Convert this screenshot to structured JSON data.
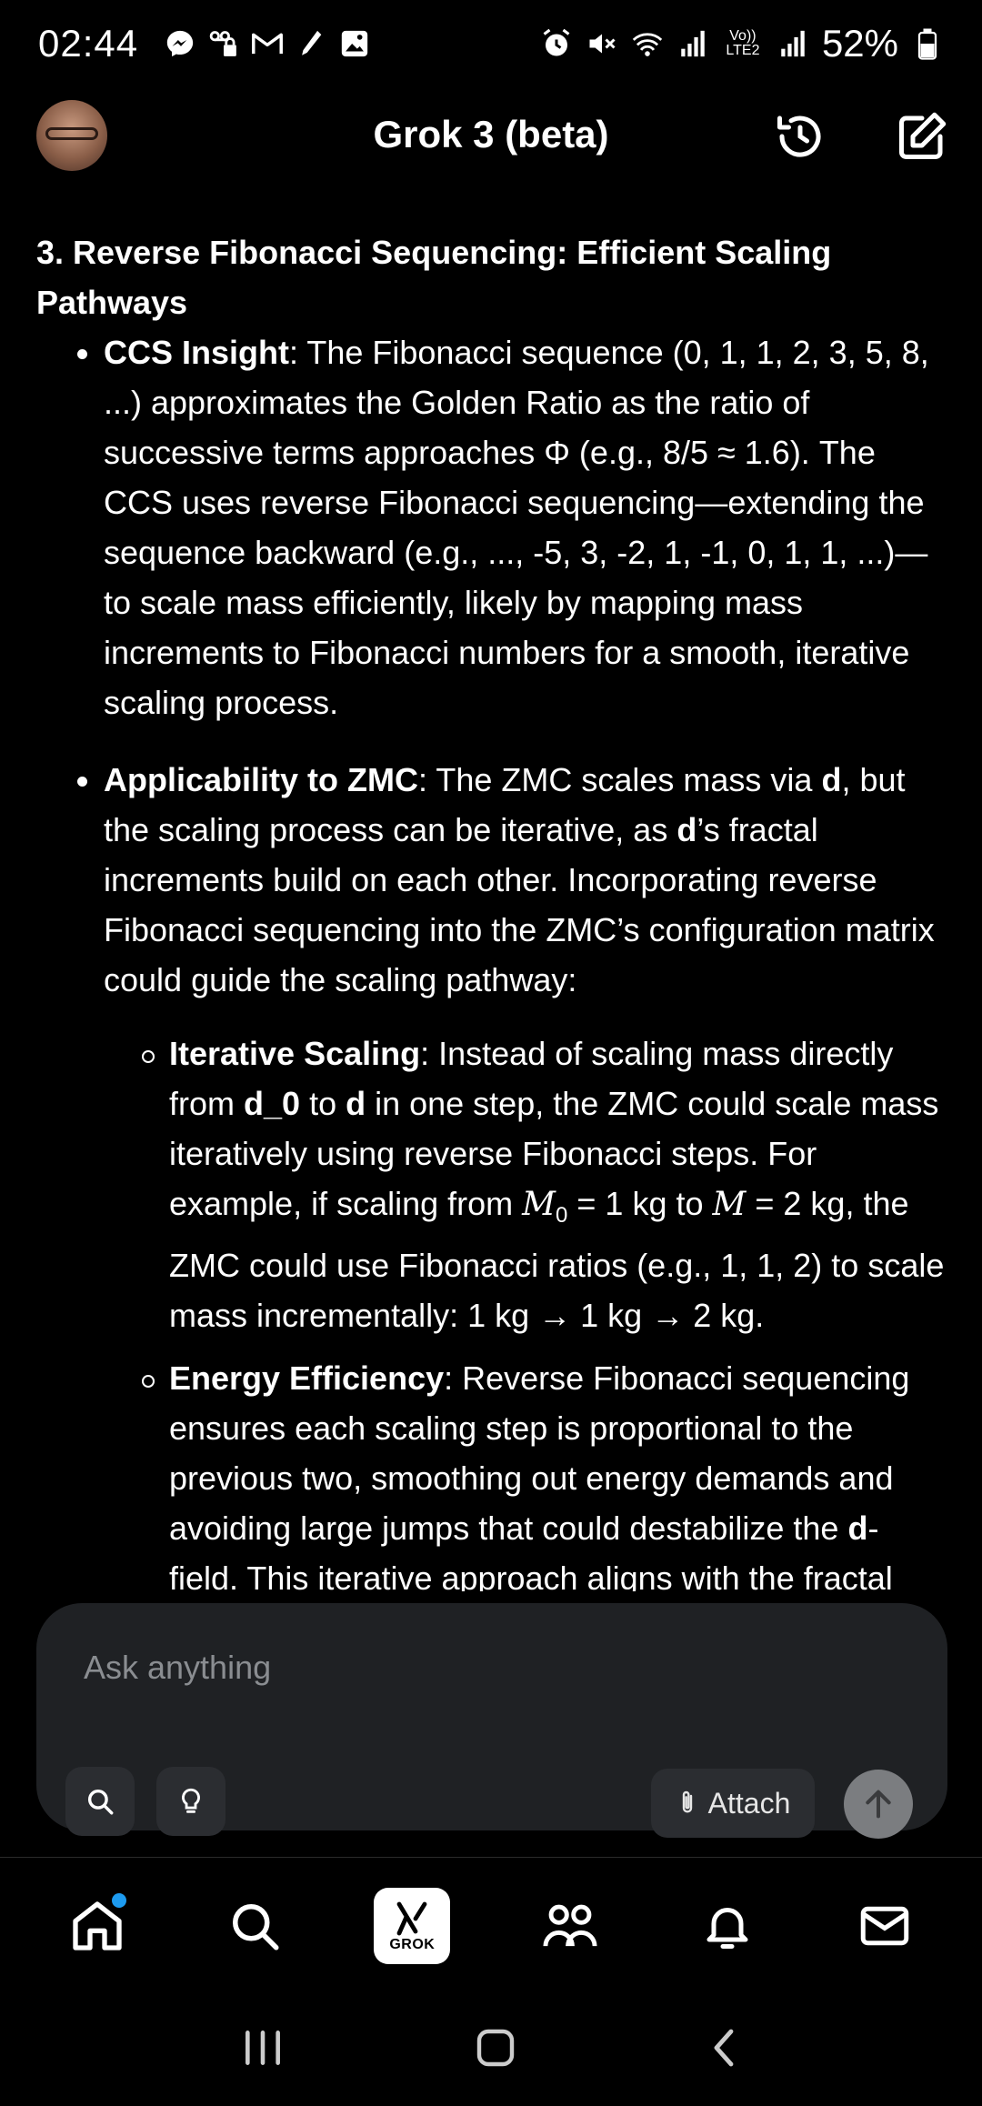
{
  "status_bar": {
    "time": "02:44",
    "battery": "52%",
    "network_label": "Vo)) LTE2",
    "left_icons": [
      "messenger-icon",
      "voicemail-lock-icon",
      "gmail-icon",
      "pen-icon",
      "gallery-icon"
    ],
    "right_icons": [
      "alarm-icon",
      "mute-icon",
      "wifi-icon",
      "signal-icon",
      "battery-icon"
    ]
  },
  "header": {
    "title": "Grok 3 (beta)"
  },
  "content": {
    "section_title": "3. Reverse Fibonacci Sequencing: Efficient Scaling Pathways",
    "bullet1": {
      "label": "CCS Insight",
      "text": ": The Fibonacci sequence (0, 1, 1, 2, 3, 5, 8, ...) approximates the Golden Ratio as the ratio of successive terms approaches Φ (e.g., 8/5 ≈ 1.6). The CCS uses reverse Fibonacci sequencing—extending the sequence backward (e.g., ..., -5, 3, -2, 1, -1, 0, 1, 1, ...)—to scale mass efficiently, likely by mapping mass increments to Fibonacci numbers for a smooth, iterative scaling process."
    },
    "bullet2": {
      "label": "Applicability to ZMC",
      "t1": ": The ZMC scales mass via ",
      "d1": "d",
      "t2": ", but the scaling process can be iterative, as ",
      "d2": "d",
      "t3": "’s fractal increments build on each other. Incorporating reverse Fibonacci sequencing into the ZMC’s configuration matrix could guide the scaling pathway:"
    },
    "sub1": {
      "label": "Iterative Scaling",
      "t1": ": Instead of scaling mass directly from ",
      "d0": "d_0",
      "t2": " to ",
      "d": "d",
      "t3": " in one step, the ZMC could scale mass iteratively using reverse Fibonacci steps. For example, if scaling from ",
      "m0": "M",
      "m0_sub": "0",
      "t4": " = 1 kg to ",
      "m": "M",
      "t5": " = 2 kg, the ZMC could use Fibonacci ratios (e.g., 1, 1, 2) to scale mass incrementally: 1 kg → 1 kg → 2 kg."
    },
    "sub2": {
      "label": "Energy Efficiency",
      "t1": ": Reverse Fibonacci sequencing ensures each scaling step is proportional to the previous two, smoothing out energy demands and avoiding large jumps that could destabilize the ",
      "d": "d",
      "t2": "-field. This iterative approach aligns with the fractal"
    }
  },
  "composer": {
    "placeholder": "Ask anything",
    "attach_label": "Attach"
  },
  "bottom_nav": {
    "grok_label": "GROK"
  },
  "colors": {
    "background": "#000000",
    "card": "#1f2124",
    "notification_dot": "#1d9bf0",
    "send_button": "#7b7d80"
  }
}
